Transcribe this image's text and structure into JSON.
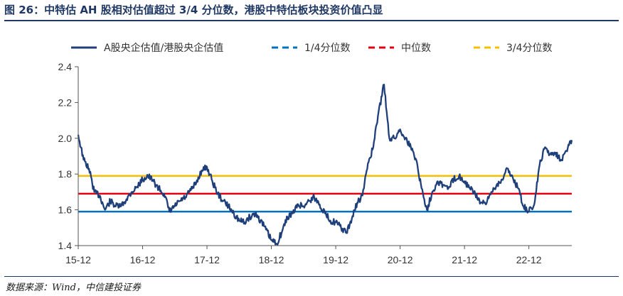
{
  "figure": {
    "title": "图 26：中特估 AH 股相对估值超过 3/4 分位数，港股中特估板块投资价值凸显",
    "source": "数据来源：Wind，中信建投证券"
  },
  "chart_data": {
    "type": "line",
    "title": "",
    "xlabel": "",
    "ylabel": "",
    "ylim": [
      1.4,
      2.4
    ],
    "yticks": [
      "1.4",
      "1.6",
      "1.8",
      "2.0",
      "2.2",
      "2.4"
    ],
    "x_tick_labels": [
      "15-12",
      "16-12",
      "17-12",
      "18-12",
      "19-12",
      "20-12",
      "21-12",
      "22-12"
    ],
    "x_range": [
      "2015-12",
      "2023-08"
    ],
    "legend_position": "top",
    "grid": false,
    "series": [
      {
        "name": "A股央企估值/港股央企估值",
        "color": "#1f3f7a",
        "style": "solid",
        "points": [
          [
            "2015-12",
            2.02
          ],
          [
            "2016-01",
            1.88
          ],
          [
            "2016-02",
            1.83
          ],
          [
            "2016-03",
            1.7
          ],
          [
            "2016-04",
            1.68
          ],
          [
            "2016-05",
            1.6
          ],
          [
            "2016-06",
            1.65
          ],
          [
            "2016-07",
            1.62
          ],
          [
            "2016-08",
            1.62
          ],
          [
            "2016-09",
            1.66
          ],
          [
            "2016-10",
            1.7
          ],
          [
            "2016-11",
            1.73
          ],
          [
            "2016-12",
            1.77
          ],
          [
            "2017-01",
            1.79
          ],
          [
            "2017-02",
            1.76
          ],
          [
            "2017-03",
            1.72
          ],
          [
            "2017-04",
            1.69
          ],
          [
            "2017-05",
            1.59
          ],
          [
            "2017-06",
            1.62
          ],
          [
            "2017-07",
            1.65
          ],
          [
            "2017-08",
            1.67
          ],
          [
            "2017-09",
            1.71
          ],
          [
            "2017-10",
            1.75
          ],
          [
            "2017-11",
            1.82
          ],
          [
            "2017-12",
            1.84
          ],
          [
            "2018-01",
            1.76
          ],
          [
            "2018-02",
            1.69
          ],
          [
            "2018-03",
            1.65
          ],
          [
            "2018-04",
            1.62
          ],
          [
            "2018-05",
            1.58
          ],
          [
            "2018-06",
            1.54
          ],
          [
            "2018-07",
            1.53
          ],
          [
            "2018-08",
            1.56
          ],
          [
            "2018-09",
            1.58
          ],
          [
            "2018-10",
            1.54
          ],
          [
            "2018-11",
            1.49
          ],
          [
            "2018-12",
            1.43
          ],
          [
            "2019-01",
            1.41
          ],
          [
            "2019-02",
            1.48
          ],
          [
            "2019-03",
            1.56
          ],
          [
            "2019-04",
            1.58
          ],
          [
            "2019-05",
            1.63
          ],
          [
            "2019-06",
            1.62
          ],
          [
            "2019-07",
            1.65
          ],
          [
            "2019-08",
            1.67
          ],
          [
            "2019-09",
            1.63
          ],
          [
            "2019-10",
            1.58
          ],
          [
            "2019-11",
            1.54
          ],
          [
            "2019-12",
            1.53
          ],
          [
            "2020-01",
            1.5
          ],
          [
            "2020-02",
            1.47
          ],
          [
            "2020-03",
            1.55
          ],
          [
            "2020-04",
            1.64
          ],
          [
            "2020-05",
            1.68
          ],
          [
            "2020-06",
            1.86
          ],
          [
            "2020-07",
            1.95
          ],
          [
            "2020-08",
            2.15
          ],
          [
            "2020-09",
            2.3
          ],
          [
            "2020-10",
            2.0
          ],
          [
            "2020-11",
            2.0
          ],
          [
            "2020-12",
            2.05
          ],
          [
            "2021-01",
            2.0
          ],
          [
            "2021-02",
            1.95
          ],
          [
            "2021-03",
            1.88
          ],
          [
            "2021-04",
            1.72
          ],
          [
            "2021-05",
            1.6
          ],
          [
            "2021-06",
            1.7
          ],
          [
            "2021-07",
            1.76
          ],
          [
            "2021-08",
            1.74
          ],
          [
            "2021-09",
            1.72
          ],
          [
            "2021-10",
            1.77
          ],
          [
            "2021-11",
            1.79
          ],
          [
            "2021-12",
            1.76
          ],
          [
            "2022-01",
            1.72
          ],
          [
            "2022-02",
            1.69
          ],
          [
            "2022-03",
            1.64
          ],
          [
            "2022-04",
            1.63
          ],
          [
            "2022-05",
            1.7
          ],
          [
            "2022-06",
            1.74
          ],
          [
            "2022-07",
            1.77
          ],
          [
            "2022-08",
            1.83
          ],
          [
            "2022-09",
            1.78
          ],
          [
            "2022-10",
            1.72
          ],
          [
            "2022-11",
            1.62
          ],
          [
            "2022-12",
            1.59
          ],
          [
            "2023-01",
            1.63
          ],
          [
            "2023-02",
            1.85
          ],
          [
            "2023-03",
            1.95
          ],
          [
            "2023-04",
            1.91
          ],
          [
            "2023-05",
            1.92
          ],
          [
            "2023-06",
            1.88
          ],
          [
            "2023-07",
            1.93
          ],
          [
            "2023-08",
            1.99
          ]
        ]
      },
      {
        "name": "1/4分位数",
        "color": "#0070c0",
        "style": "dashed",
        "value": 1.59
      },
      {
        "name": "中位数",
        "color": "#e0000f",
        "style": "dashed",
        "value": 1.69
      },
      {
        "name": "3/4分位数",
        "color": "#f5c000",
        "style": "dashed",
        "value": 1.79
      }
    ]
  }
}
